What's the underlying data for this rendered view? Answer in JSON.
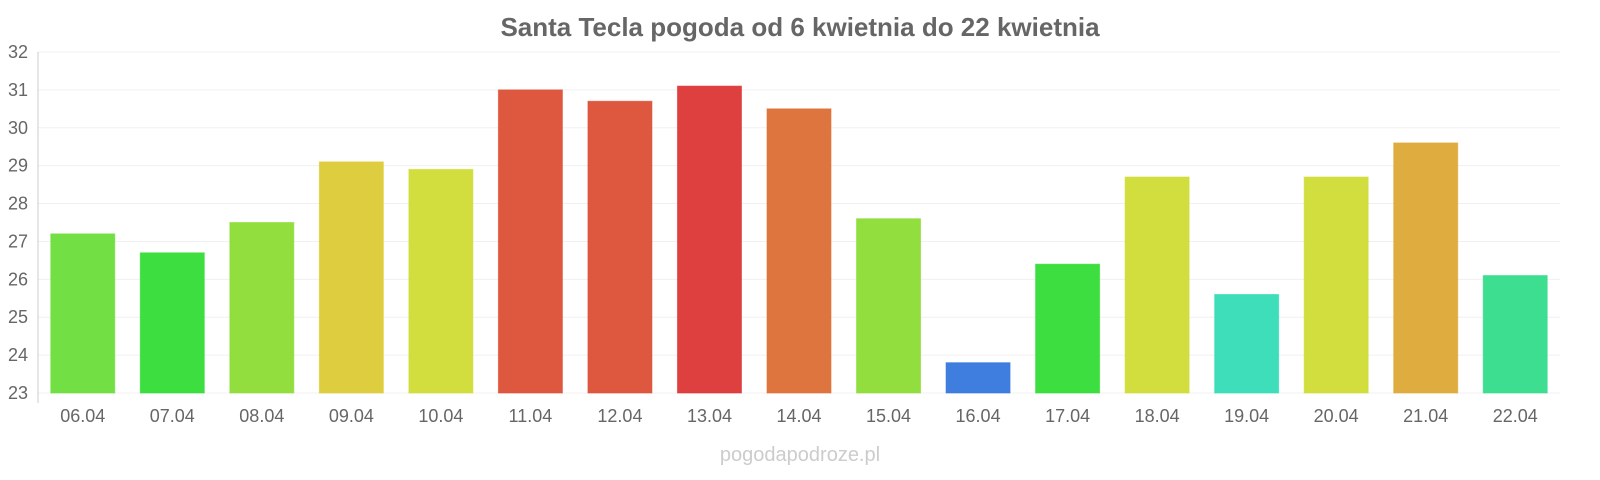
{
  "chart_data": {
    "type": "bar",
    "title": "Santa Tecla pogoda od 6 kwietnia do 22 kwietnia",
    "xlabel": "",
    "ylabel": "",
    "ylim": [
      23,
      32
    ],
    "yticks": [
      23,
      24,
      25,
      26,
      27,
      28,
      29,
      30,
      31,
      32
    ],
    "grid": true,
    "categories": [
      "06.04",
      "07.04",
      "08.04",
      "09.04",
      "10.04",
      "11.04",
      "12.04",
      "13.04",
      "14.04",
      "15.04",
      "16.04",
      "17.04",
      "18.04",
      "19.04",
      "20.04",
      "21.04",
      "22.04"
    ],
    "values": [
      27.2,
      26.7,
      27.5,
      29.1,
      28.9,
      31.0,
      30.7,
      31.1,
      30.5,
      27.6,
      23.8,
      26.4,
      28.7,
      25.6,
      28.7,
      29.6,
      26.1
    ],
    "colors": [
      "#6ade3a",
      "#33dc35",
      "#8cdc35",
      "#dccb35",
      "#cfdc33",
      "#dc4f35",
      "#dc4f35",
      "#dc3535",
      "#dc6e35",
      "#8cdc35",
      "#3577dc",
      "#33dc35",
      "#cfdc33",
      "#33dcb5",
      "#cfdc33",
      "#dca835",
      "#33dc8a"
    ]
  },
  "watermark": "pogodapodroze.pl"
}
